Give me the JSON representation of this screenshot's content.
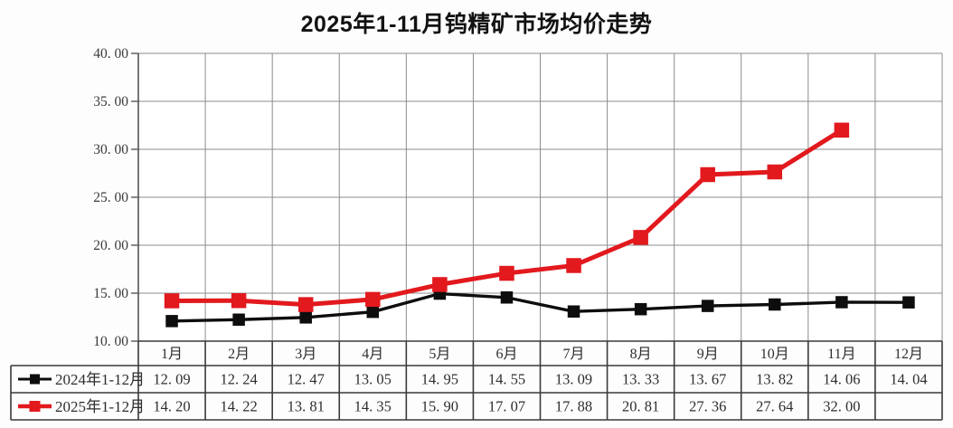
{
  "title": "2025年1-11月钨精矿市场均价走势",
  "colors": {
    "background": "#fdfdfd",
    "series_2024": "#0d0d0d",
    "series_2025": "#e2191d",
    "grid": "#8c8c8c",
    "axis": "#4a4a4a",
    "table_border": "#3a3a3a",
    "text": "#2e2e2e",
    "tick_text": "#3a3a3a"
  },
  "chart_data": {
    "type": "line",
    "title": "2025年1-11月钨精矿市场均价走势",
    "categories": [
      "1月",
      "2月",
      "3月",
      "4月",
      "5月",
      "6月",
      "7月",
      "8月",
      "9月",
      "10月",
      "11月",
      "12月"
    ],
    "series": [
      {
        "name": "2024年1-12月",
        "marker": "square",
        "color_key": "series_2024",
        "values": [
          12.09,
          12.24,
          12.47,
          13.05,
          14.95,
          14.55,
          13.09,
          13.33,
          13.67,
          13.82,
          14.06,
          14.04
        ]
      },
      {
        "name": "2025年1-12月",
        "marker": "square",
        "color_key": "series_2025",
        "values": [
          14.2,
          14.22,
          13.81,
          14.35,
          15.9,
          17.07,
          17.88,
          20.81,
          27.36,
          27.64,
          32.0,
          null
        ]
      }
    ],
    "xlabel": "",
    "ylabel": "",
    "ylim": [
      10,
      40
    ],
    "ytick_step": 5,
    "ytick_labels": [
      "10.00",
      "15.00",
      "20.00",
      "25.00",
      "30.00",
      "35.00",
      "40.00"
    ],
    "grid": true,
    "legend_position": "table-left-column"
  },
  "table": {
    "columns": [
      "1月",
      "2月",
      "3月",
      "4月",
      "5月",
      "6月",
      "7月",
      "8月",
      "9月",
      "10月",
      "11月",
      "12月"
    ],
    "rows": [
      {
        "label": "2024年1-12月",
        "values": [
          "12.09",
          "12.24",
          "12.47",
          "13.05",
          "14.95",
          "14.55",
          "13.09",
          "13.33",
          "13.67",
          "13.82",
          "14.06",
          "14.04"
        ]
      },
      {
        "label": "2025年1-12月",
        "values": [
          "14.20",
          "14.22",
          "13.81",
          "14.35",
          "15.90",
          "17.07",
          "17.88",
          "20.81",
          "27.36",
          "27.64",
          "32.00",
          ""
        ]
      }
    ]
  }
}
